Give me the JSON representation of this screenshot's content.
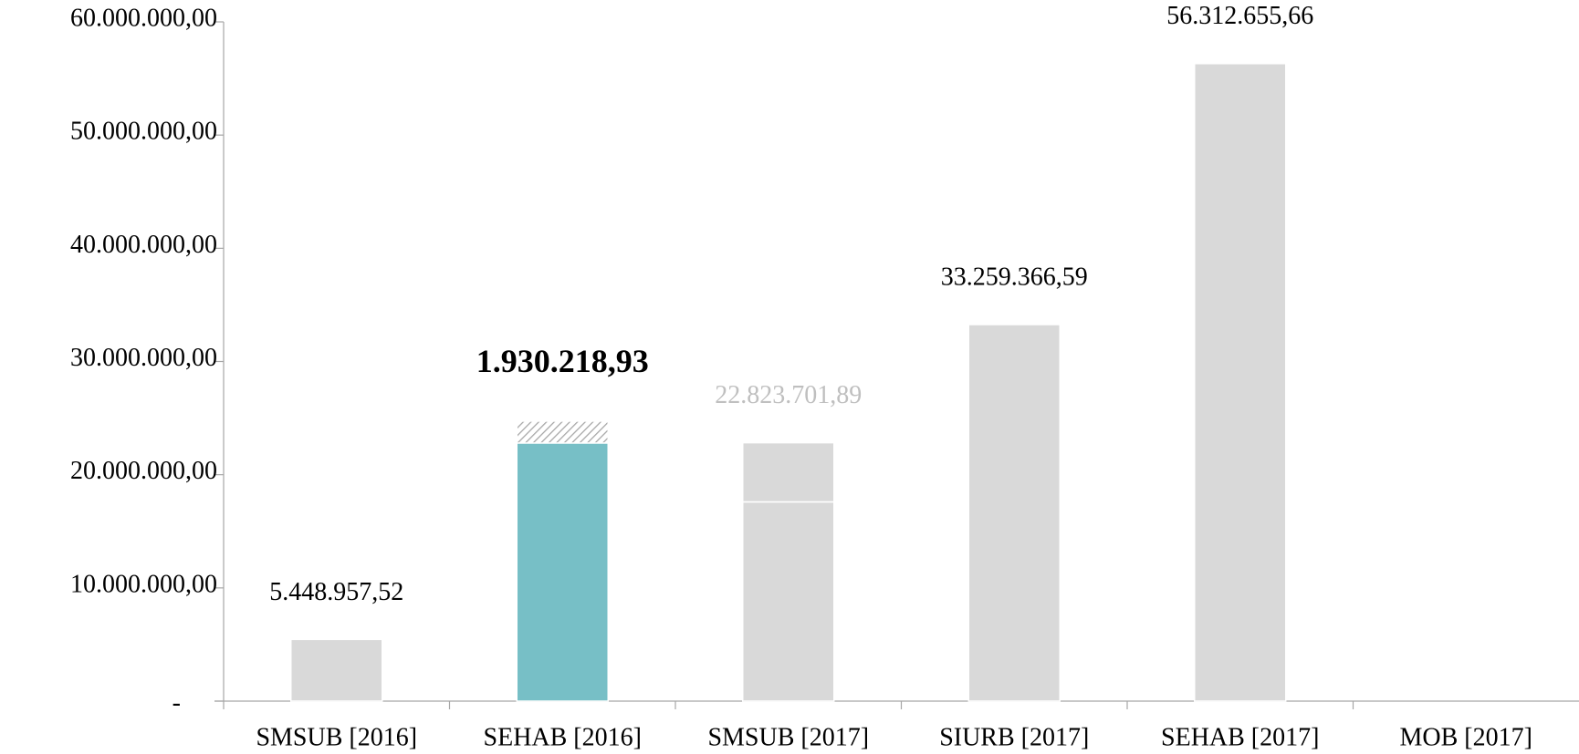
{
  "chart_data": {
    "type": "stacked_bar",
    "categories": [
      "SMSUB [2016]",
      "SEHAB [2016]",
      "SMSUB [2017]",
      "SIURB [2017]",
      "SEHAB [2017]",
      "MOB [2017]"
    ],
    "series": [
      {
        "values": [
          5448957.52,
          22800000,
          17600000,
          33259366.59,
          56312655.66,
          null
        ],
        "colors": [
          "#d9d9d9",
          "#77bfc6",
          "#d9d9d9",
          "#d9d9d9",
          "#d9d9d9",
          null
        ],
        "hatched": [
          false,
          false,
          false,
          false,
          false,
          false
        ]
      },
      {
        "values": [
          null,
          1930218.93,
          5223701.89,
          null,
          null,
          null
        ],
        "colors": [
          null,
          "#a6a6a6",
          "#d9d9d9",
          null,
          null,
          null
        ],
        "hatched": [
          false,
          true,
          false,
          false,
          false,
          false
        ]
      }
    ],
    "annotations": [
      "5.448.957,52",
      "1.930.218,93",
      "22.823.701,89",
      "33.259.366,59",
      "56.312.655,66",
      null
    ],
    "annotation_colors": [
      "#000000",
      "#000000",
      "#bfbfbf",
      "#000000",
      "#000000",
      null
    ],
    "annotation_weights": [
      "normal",
      "bold",
      "normal",
      "normal",
      "normal",
      null
    ],
    "ylim": [
      0,
      60000000
    ],
    "yticks": [
      {
        "value": 0,
        "label": "-"
      },
      {
        "value": 10000000,
        "label": "10.000.000,00"
      },
      {
        "value": 20000000,
        "label": "20.000.000,00"
      },
      {
        "value": 30000000,
        "label": "30.000.000,00"
      },
      {
        "value": 40000000,
        "label": "40.000.000,00"
      },
      {
        "value": 50000000,
        "label": "50.000.000,00"
      },
      {
        "value": 60000000,
        "label": "60.000.000,00"
      }
    ],
    "grid": false
  }
}
